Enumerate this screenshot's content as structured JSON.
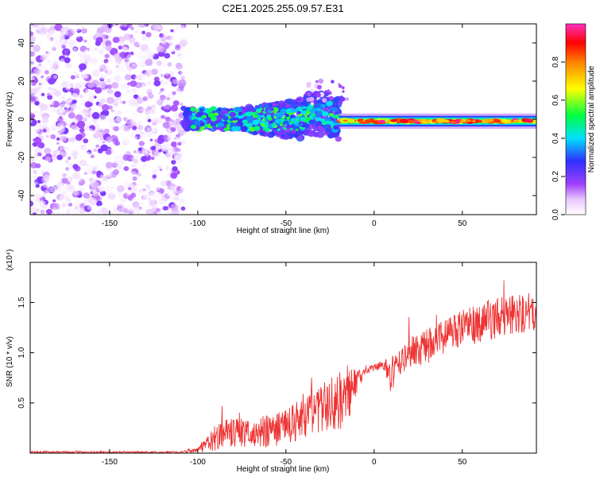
{
  "title": "C2E1.2025.255.09.57.E31",
  "chart_data": [
    {
      "type": "heatmap",
      "panel": "spectrogram",
      "title": "C2E1.2025.255.09.57.E31",
      "xlabel": "Height of straight line (km)",
      "ylabel": "Frequency (Hz)",
      "xlim": [
        -195,
        92
      ],
      "ylim": [
        -50,
        50
      ],
      "xticks": [
        -150,
        -100,
        -50,
        0,
        50
      ],
      "yticks": [
        -40,
        -20,
        0,
        20,
        40
      ],
      "xtick_labels": [
        "-150",
        "-100",
        "-50",
        "0",
        "50"
      ],
      "ytick_labels": [
        "-40",
        "-20",
        "0",
        "20",
        "40"
      ],
      "grid": false,
      "colorbar": {
        "label": "Normalized spectral amplitude",
        "range": [
          0,
          1
        ],
        "ticks": [
          0.0,
          0.2,
          0.4,
          0.6,
          0.8
        ],
        "tick_labels": [
          "0.0",
          "0.2",
          "0.4",
          "0.6",
          "0.8"
        ],
        "colormap": [
          "#ffffff",
          "#9b30ff",
          "#3030ff",
          "#00e0ff",
          "#00ff40",
          "#ffff00",
          "#ff8000",
          "#ff0000",
          "#ff40c0"
        ]
      },
      "regions": [
        {
          "name": "broadband noise",
          "x": [
            -195,
            -108
          ],
          "freq_range": [
            -50,
            50
          ],
          "amplitude": [
            0.0,
            0.2
          ]
        },
        {
          "name": "trail (scattered)",
          "x": [
            -108,
            -20
          ],
          "freq_center": 0,
          "freq_halfwidth": 8,
          "amplitude": [
            0.2,
            0.7
          ]
        },
        {
          "name": "trail (narrow)",
          "x": [
            -20,
            92
          ],
          "freq_center": -1,
          "freq_halfwidth": 2,
          "amplitude": [
            0.6,
            1.0
          ]
        }
      ]
    },
    {
      "type": "line",
      "panel": "snr",
      "xlabel": "Height of straight line (km)",
      "ylabel": "SNR (10 * v/v)",
      "yscale_label": "(x10⁴)",
      "xlim": [
        -195,
        92
      ],
      "ylim": [
        0,
        1.9
      ],
      "xticks": [
        -150,
        -100,
        -50,
        0,
        50
      ],
      "yticks": [
        0.5,
        1.0,
        1.5
      ],
      "xtick_labels": [
        "-150",
        "-100",
        "-50",
        "0",
        "50"
      ],
      "ytick_labels": [
        "0.5",
        "1.0",
        "1.5"
      ],
      "color": "#ee3333",
      "grid": false,
      "series": [
        {
          "name": "SNR",
          "envelope_x": [
            -195,
            -110,
            -100,
            -95,
            -90,
            -80,
            -70,
            -60,
            -50,
            -40,
            -30,
            -20,
            -15,
            -10,
            -5,
            0,
            5,
            10,
            15,
            20,
            30,
            40,
            50,
            60,
            70,
            80,
            92
          ],
          "envelope_mean": [
            0.01,
            0.01,
            0.03,
            0.1,
            0.17,
            0.2,
            0.2,
            0.22,
            0.27,
            0.35,
            0.45,
            0.53,
            0.6,
            0.72,
            0.82,
            0.85,
            0.88,
            0.78,
            0.9,
            1.0,
            1.06,
            1.16,
            1.24,
            1.3,
            1.35,
            1.4,
            1.4
          ],
          "envelope_spread": [
            0.01,
            0.01,
            0.02,
            0.09,
            0.14,
            0.15,
            0.14,
            0.16,
            0.18,
            0.2,
            0.24,
            0.3,
            0.3,
            0.12,
            0.04,
            0.04,
            0.04,
            0.2,
            0.12,
            0.15,
            0.17,
            0.17,
            0.19,
            0.2,
            0.2,
            0.2,
            0.2
          ]
        }
      ]
    }
  ]
}
